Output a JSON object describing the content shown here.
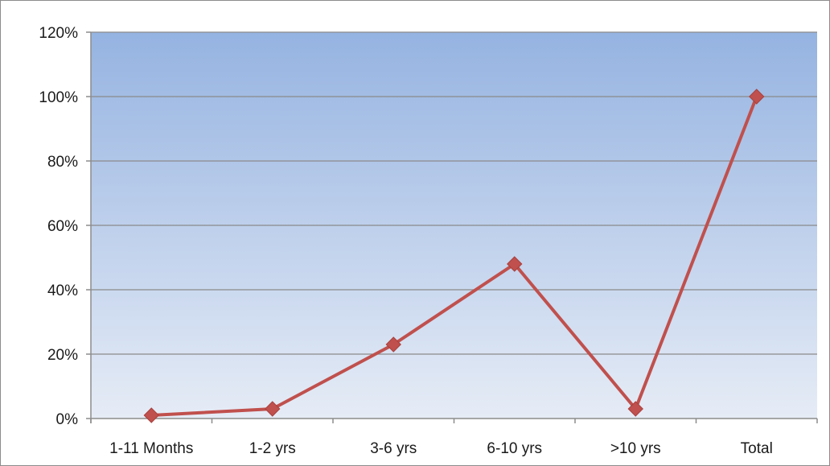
{
  "chart_data": {
    "type": "line",
    "title": "",
    "xlabel": "",
    "ylabel": "",
    "categories": [
      "1-11 Months",
      "1-2 yrs",
      "3-6 yrs",
      "6-10 yrs",
      ">10 yrs",
      "Total"
    ],
    "series": [
      {
        "values": [
          0.01,
          0.03,
          0.23,
          0.48,
          0.03,
          1.0
        ],
        "color": "#c0504d",
        "marker": "diamond"
      }
    ],
    "ylim": [
      0,
      1.2
    ],
    "yticks": [
      0,
      0.2,
      0.4,
      0.6,
      0.8,
      1.0,
      1.2
    ],
    "ytick_labels": [
      "0%",
      "20%",
      "40%",
      "60%",
      "80%",
      "100%",
      "120%"
    ],
    "y_format": "percent",
    "grid": "horizontal",
    "legend": "none",
    "plot_background": {
      "gradient_top": "#95b3e1",
      "gradient_bottom": "#e6ecf6"
    },
    "gridline_color": "#8a8a8a",
    "axis_color": "#8c8c8c"
  }
}
